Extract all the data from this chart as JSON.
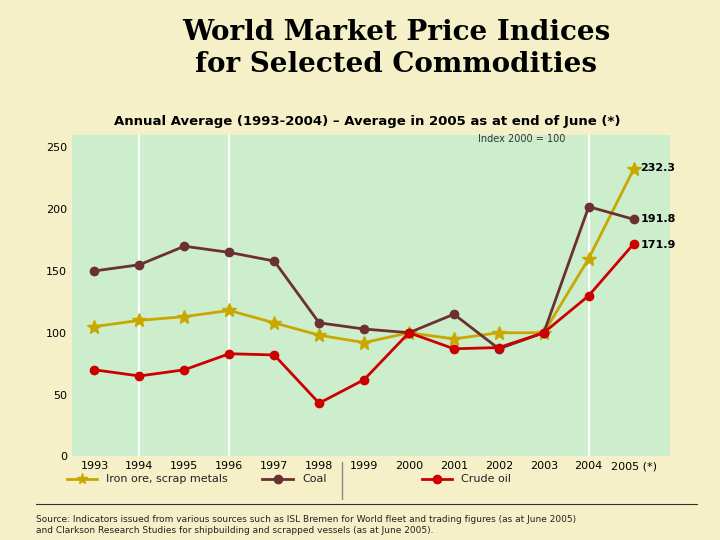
{
  "title_main": "World Market Price Indices\nfor Selected Commodities",
  "subtitle": "Annual Average (1993-2004) – Average in 2005 as at end of June (*)",
  "index_label": "Index 2000 = 100",
  "source_text": "Source: Indicators issued from various sources such as ISL Bremen for World fleet and trading figures (as at June 2005)\nand Clarkson Research Studies for shipbuilding and scrapped vessels (as at June 2005).",
  "years": [
    1993,
    1994,
    1995,
    1996,
    1997,
    1998,
    1999,
    2000,
    2001,
    2002,
    2003,
    2004,
    2005
  ],
  "year_labels": [
    "1993",
    "1994",
    "1995",
    "1996",
    "1997",
    "1998",
    "1999",
    "2000",
    "2001",
    "2002",
    "2003",
    "2004",
    "2005 (*)"
  ],
  "iron_ore": [
    105,
    110,
    113,
    118,
    108,
    98,
    92,
    100,
    95,
    100,
    100,
    160,
    232.3
  ],
  "coal": [
    150,
    155,
    170,
    165,
    158,
    108,
    103,
    100,
    115,
    87,
    100,
    202,
    191.8
  ],
  "crude_oil": [
    70,
    65,
    70,
    83,
    82,
    43,
    62,
    100,
    87,
    88,
    100,
    130,
    171.9
  ],
  "end_labels": {
    "iron_ore": "232.3",
    "coal": "191.8",
    "crude_oil": "171.9"
  },
  "iron_ore_color": "#c8a800",
  "coal_color": "#6b3030",
  "crude_oil_color": "#cc0000",
  "bg_chart": "#cceecc",
  "bg_outer": "#f5f0c8",
  "bg_header": "#ffffff",
  "vlines": [
    1994,
    1996,
    2004
  ],
  "ylim": [
    0,
    260
  ],
  "yticks": [
    0,
    50,
    100,
    150,
    200,
    250
  ],
  "figsize": [
    7.2,
    5.4
  ],
  "dpi": 100
}
